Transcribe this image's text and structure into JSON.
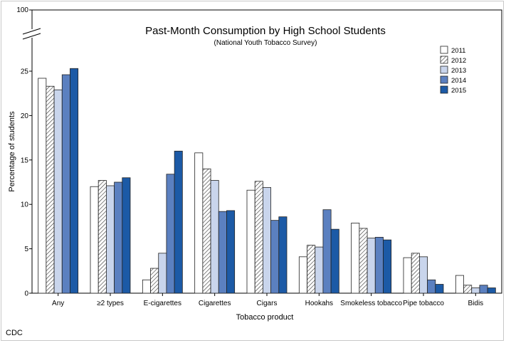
{
  "source_credit": "CDC",
  "chart_data": {
    "type": "bar",
    "title": "Past-Month Consumption by High School Students",
    "subtitle": "(National Youth Tobacco Survey)",
    "xlabel": "Tobacco product",
    "ylabel": "Percentage of students",
    "ylim": [
      0,
      25
    ],
    "axis_break_top_label": "100",
    "y_ticks": [
      0,
      5,
      10,
      15,
      20,
      25
    ],
    "grid": false,
    "legend_position": "top-right",
    "categories": [
      "Any",
      "≥2 types",
      "E-cigarettes",
      "Cigarettes",
      "Cigars",
      "Hookahs",
      "Smokeless tobacco",
      "Pipe tobacco",
      "Bidis"
    ],
    "series": [
      {
        "name": "2011",
        "color": "#ffffff",
        "pattern": "none",
        "values": [
          24.2,
          12.0,
          1.5,
          15.8,
          11.6,
          4.1,
          7.9,
          4.0,
          2.0
        ]
      },
      {
        "name": "2012",
        "color": "#ffffff",
        "pattern": "hatch",
        "values": [
          23.3,
          12.7,
          2.8,
          14.0,
          12.6,
          5.4,
          7.3,
          4.5,
          0.9
        ]
      },
      {
        "name": "2013",
        "color": "#c9d5ec",
        "pattern": "none",
        "values": [
          22.9,
          12.1,
          4.5,
          12.7,
          11.9,
          5.2,
          6.2,
          4.1,
          0.6
        ]
      },
      {
        "name": "2014",
        "color": "#5b80c0",
        "pattern": "none",
        "values": [
          24.6,
          12.5,
          13.4,
          9.2,
          8.2,
          9.4,
          6.3,
          1.5,
          0.9
        ]
      },
      {
        "name": "2015",
        "color": "#1c5aa6",
        "pattern": "none",
        "values": [
          25.3,
          13.0,
          16.0,
          9.3,
          8.6,
          7.2,
          6.0,
          1.0,
          0.6
        ]
      }
    ]
  }
}
